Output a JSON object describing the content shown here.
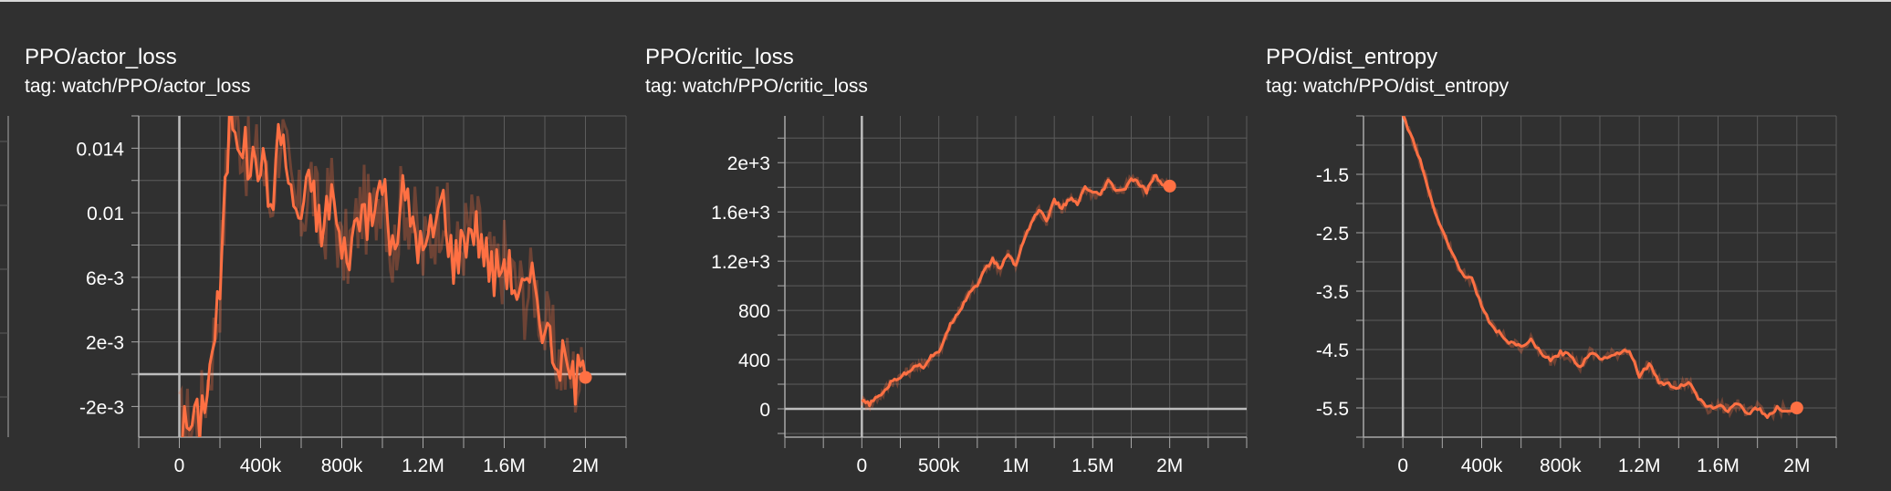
{
  "colors": {
    "background": "#303030",
    "grid": "#5c5c5c",
    "axis": "#a8a8a8",
    "zero_line": "#bdbdbd",
    "text": "#ffffff",
    "series": "#ff7043",
    "series_raw": "#ff7043"
  },
  "chart_data": [
    {
      "type": "line",
      "title": "PPO/actor_loss",
      "subtitle": "tag: watch/PPO/actor_loss",
      "x_ticks": [
        0,
        400000,
        800000,
        1200000,
        1600000,
        2000000
      ],
      "x_tick_labels": [
        "0",
        "400k",
        "800k",
        "1.2M",
        "1.6M",
        "2M"
      ],
      "y_ticks": [
        -0.002,
        0.002,
        0.006,
        0.01,
        0.014
      ],
      "y_tick_labels": [
        "-2e-3",
        "2e-3",
        "6e-3",
        "0.01",
        "0.014"
      ],
      "xlim": [
        -200000,
        2200000
      ],
      "ylim": [
        -0.0039,
        0.016
      ],
      "grid": true,
      "zero_line": true,
      "series": [
        {
          "x": [
            0,
            50000,
            100000,
            150000,
            200000,
            250000,
            300000,
            350000,
            400000,
            450000,
            500000,
            550000,
            600000,
            650000,
            700000,
            750000,
            800000,
            850000,
            900000,
            950000,
            1000000,
            1050000,
            1100000,
            1150000,
            1200000,
            1250000,
            1300000,
            1350000,
            1400000,
            1450000,
            1500000,
            1550000,
            1600000,
            1650000,
            1700000,
            1750000,
            1800000,
            1850000,
            1900000,
            1950000,
            2000000
          ],
          "y": [
            -0.0034,
            -0.0031,
            -0.0028,
            0.0003,
            0.0052,
            0.0165,
            0.0148,
            0.0128,
            0.0135,
            0.0104,
            0.0155,
            0.0109,
            0.0098,
            0.0121,
            0.0084,
            0.0116,
            0.0072,
            0.0082,
            0.0105,
            0.0093,
            0.0124,
            0.0071,
            0.0112,
            0.0095,
            0.0073,
            0.0091,
            0.0108,
            0.0068,
            0.0085,
            0.0093,
            0.0078,
            0.0061,
            0.0072,
            0.0056,
            0.0049,
            0.0057,
            0.0028,
            0.0013,
            0.0004,
            -0.0003,
            -0.0002
          ]
        }
      ]
    },
    {
      "type": "line",
      "title": "PPO/critic_loss",
      "subtitle": "tag: watch/PPO/critic_loss",
      "x_ticks": [
        0,
        500000,
        1000000,
        1500000,
        2000000
      ],
      "x_tick_labels": [
        "0",
        "500k",
        "1M",
        "1.5M",
        "2M"
      ],
      "y_ticks": [
        0,
        400,
        800,
        1200,
        1600,
        2000
      ],
      "y_tick_labels": [
        "0",
        "400",
        "800",
        "1.2e+3",
        "1.6e+3",
        "2e+3"
      ],
      "xlim": [
        -500000,
        2500000
      ],
      "ylim": [
        -230,
        2380
      ],
      "grid": true,
      "zero_line": true,
      "series": [
        {
          "x": [
            0,
            50000,
            100000,
            150000,
            200000,
            250000,
            300000,
            350000,
            400000,
            450000,
            500000,
            550000,
            600000,
            650000,
            700000,
            750000,
            800000,
            850000,
            900000,
            950000,
            1000000,
            1050000,
            1100000,
            1150000,
            1200000,
            1250000,
            1300000,
            1350000,
            1400000,
            1450000,
            1500000,
            1550000,
            1600000,
            1650000,
            1700000,
            1750000,
            1800000,
            1850000,
            1900000,
            1950000,
            2000000
          ],
          "y": [
            60,
            40,
            90,
            150,
            230,
            260,
            300,
            360,
            340,
            430,
            450,
            620,
            740,
            830,
            950,
            1010,
            1130,
            1210,
            1140,
            1260,
            1160,
            1370,
            1510,
            1620,
            1530,
            1690,
            1630,
            1710,
            1660,
            1800,
            1750,
            1740,
            1850,
            1780,
            1770,
            1870,
            1830,
            1760,
            1900,
            1830,
            1810
          ]
        }
      ]
    },
    {
      "type": "line",
      "title": "PPO/dist_entropy",
      "subtitle": "tag: watch/PPO/dist_entropy",
      "x_ticks": [
        0,
        400000,
        800000,
        1200000,
        1600000,
        2000000
      ],
      "x_tick_labels": [
        "0",
        "400k",
        "800k",
        "1.2M",
        "1.6M",
        "2M"
      ],
      "y_ticks": [
        -5.5,
        -4.5,
        -3.5,
        -2.5,
        -1.5
      ],
      "y_tick_labels": [
        "-5.5",
        "-4.5",
        "-3.5",
        "-2.5",
        "-1.5"
      ],
      "xlim": [
        -200000,
        2200000
      ],
      "ylim": [
        -6.0,
        -0.5
      ],
      "grid": true,
      "zero_line": false,
      "series": [
        {
          "x": [
            0,
            50000,
            100000,
            150000,
            200000,
            250000,
            300000,
            350000,
            400000,
            450000,
            500000,
            550000,
            600000,
            650000,
            700000,
            750000,
            800000,
            850000,
            900000,
            950000,
            1000000,
            1050000,
            1100000,
            1150000,
            1200000,
            1250000,
            1300000,
            1350000,
            1400000,
            1450000,
            1500000,
            1550000,
            1600000,
            1650000,
            1700000,
            1750000,
            1800000,
            1850000,
            1900000,
            1950000,
            2000000
          ],
          "y": [
            -0.5,
            -0.9,
            -1.4,
            -2.0,
            -2.45,
            -2.85,
            -3.2,
            -3.3,
            -3.75,
            -4.1,
            -4.25,
            -4.4,
            -4.45,
            -4.35,
            -4.55,
            -4.7,
            -4.55,
            -4.6,
            -4.8,
            -4.55,
            -4.65,
            -4.6,
            -4.55,
            -4.5,
            -4.95,
            -4.75,
            -5.05,
            -5.1,
            -5.15,
            -5.05,
            -5.35,
            -5.5,
            -5.45,
            -5.55,
            -5.4,
            -5.6,
            -5.5,
            -5.65,
            -5.5,
            -5.55,
            -5.5
          ]
        }
      ]
    }
  ]
}
